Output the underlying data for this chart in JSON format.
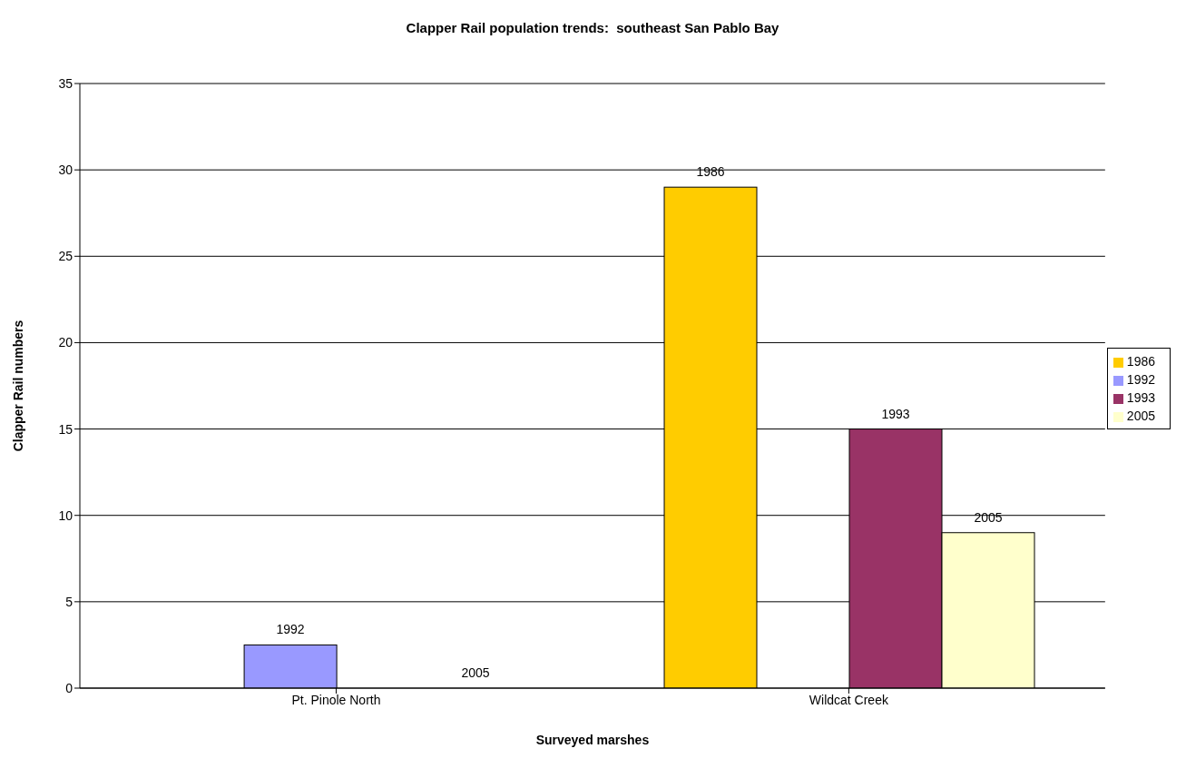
{
  "chart_data": {
    "type": "bar",
    "title": "Clapper Rail population trends:  southeast San Pablo Bay",
    "xlabel": "Surveyed marshes",
    "ylabel": "Clapper Rail numbers",
    "categories": [
      "Pt. Pinole North",
      "Wildcat Creek"
    ],
    "series": [
      {
        "name": "1986",
        "color": "#ffcc00",
        "values": [
          null,
          29
        ]
      },
      {
        "name": "1992",
        "color": "#9999ff",
        "values": [
          2.5,
          null
        ]
      },
      {
        "name": "1993",
        "color": "#993366",
        "values": [
          null,
          15
        ]
      },
      {
        "name": "2005",
        "color": "#ffffcc",
        "values": [
          0,
          9
        ]
      }
    ],
    "ylim": [
      0,
      35
    ],
    "yticks": [
      0,
      5,
      10,
      15,
      20,
      25,
      30,
      35
    ],
    "grid": "y",
    "legend": "right"
  }
}
